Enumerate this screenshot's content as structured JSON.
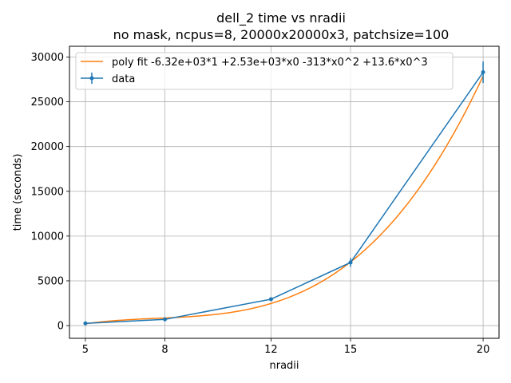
{
  "chart_data": {
    "type": "line",
    "title": "dell_2 time vs nradii",
    "subtitle": "no mask, ncpus=8, 20000x20000x3, patchsize=100",
    "xlabel": "nradii",
    "ylabel": "time (seconds)",
    "xlim": [
      4.4,
      20.6
    ],
    "ylim": [
      -1420,
      31200
    ],
    "x_ticks": [
      5,
      8,
      12,
      15,
      20
    ],
    "y_ticks": [
      0,
      5000,
      10000,
      15000,
      20000,
      25000,
      30000
    ],
    "grid": true,
    "legend_position": "top-left",
    "series": [
      {
        "name": "data",
        "kind": "errorbar",
        "color": "#1f77b4",
        "x": [
          5,
          8,
          12,
          15,
          20
        ],
        "y": [
          250,
          700,
          2950,
          7050,
          28300
        ],
        "yerr": [
          80,
          120,
          150,
          500,
          1200
        ]
      },
      {
        "name": "poly fit -6.32e+03*1 +2.53e+03*x0 -313*x0^2 +13.6*x0^3",
        "kind": "fit",
        "color": "#ff7f0e",
        "coefficients": [
          -6320,
          2530,
          -313,
          13.6
        ],
        "x_range": [
          5,
          20
        ]
      }
    ]
  }
}
